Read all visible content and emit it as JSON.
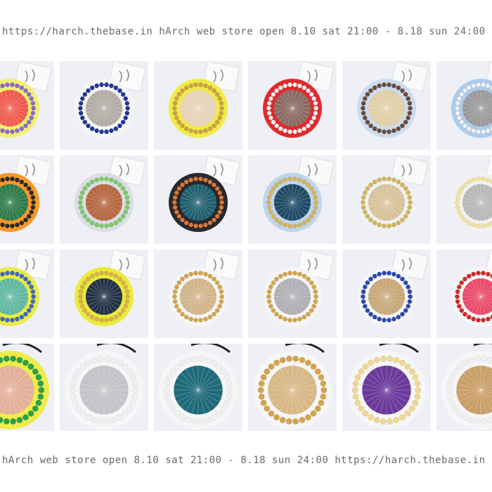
{
  "header": {
    "text": "https://harch.thebase.in hArch web store open 8.10 sat 21:00 - 8.18 sun 24:00"
  },
  "footer": {
    "text": "hArch web store open 8.10 sat 21:00 - 8.18 sun 24:00 https://harch.thebase.in"
  },
  "gallery": {
    "rows": [
      [
        {
          "center": "#ef5a4e",
          "disc": "#f2ee6a",
          "beads": "#8a6ad0"
        },
        {
          "center": "#b3aca6",
          "disc": "#f4f4f4",
          "beads": "#23359a"
        },
        {
          "center": "#e6d3b8",
          "disc": "#f0ea3c",
          "beads": "#c9a24a"
        },
        {
          "center": "#8a6a62",
          "disc": "#e21e22",
          "beads": "#f5f5f5"
        },
        {
          "center": "#e0cfa8",
          "disc": "#c8daee",
          "beads": "#6b4a3a"
        },
        {
          "center": "#9a9a9a",
          "disc": "#a9c8ea",
          "beads": "#f2f2f2"
        }
      ],
      [
        {
          "center": "#2e7a4a",
          "disc": "#f7941d",
          "beads": "#2a2a2a"
        },
        {
          "center": "#b5673f",
          "disc": "#d9dbe0",
          "beads": "#7bc96a"
        },
        {
          "center": "#1f5f6e",
          "disc": "#1e1e22",
          "beads": "#d87a3a"
        },
        {
          "center": "#1f4a66",
          "disc": "#bcd3ea",
          "beads": "#d4b45a"
        },
        {
          "center": "#d8c29a",
          "disc": "#eef0f3",
          "beads": "#d4b45a"
        },
        {
          "center": "#b8b8b8",
          "disc": "#f0f0f0",
          "beads": "#f0e29a"
        }
      ],
      [
        {
          "center": "#5fb8a0",
          "disc": "#e8ea40",
          "beads": "#3d6ac0"
        },
        {
          "center": "#233246",
          "disc": "#eaea30",
          "beads": "#d8b050"
        },
        {
          "center": "#d2b48a",
          "disc": "#f4f4f6",
          "beads": "#d4a44a"
        },
        {
          "center": "#b0b0b4",
          "disc": "#f4f4f6",
          "beads": "#d4a44a"
        },
        {
          "center": "#c8a878",
          "disc": "#f4f4f6",
          "beads": "#2a48b0"
        },
        {
          "center": "#ea4a6a",
          "disc": "#f4f4f6",
          "beads": "#d02a2a"
        }
      ],
      [
        {
          "center": "#e4b09a",
          "disc": "#eeea40",
          "beads": "#2aa04a"
        },
        {
          "center": "#c4c4c8",
          "disc": "#f6f6f8",
          "beads": "#f0f0f0"
        },
        {
          "center": "#1f6a7a",
          "disc": "#f6f6f8",
          "beads": "#f0f0f0"
        },
        {
          "center": "#d8b888",
          "disc": "#f6f6f8",
          "beads": "#d4a44a"
        },
        {
          "center": "#6a3a9a",
          "disc": "#f6f6f8",
          "beads": "#f0d890"
        },
        {
          "center": "#c8a068",
          "disc": "#f6f6f8",
          "beads": "#f0f0f0"
        }
      ]
    ]
  }
}
